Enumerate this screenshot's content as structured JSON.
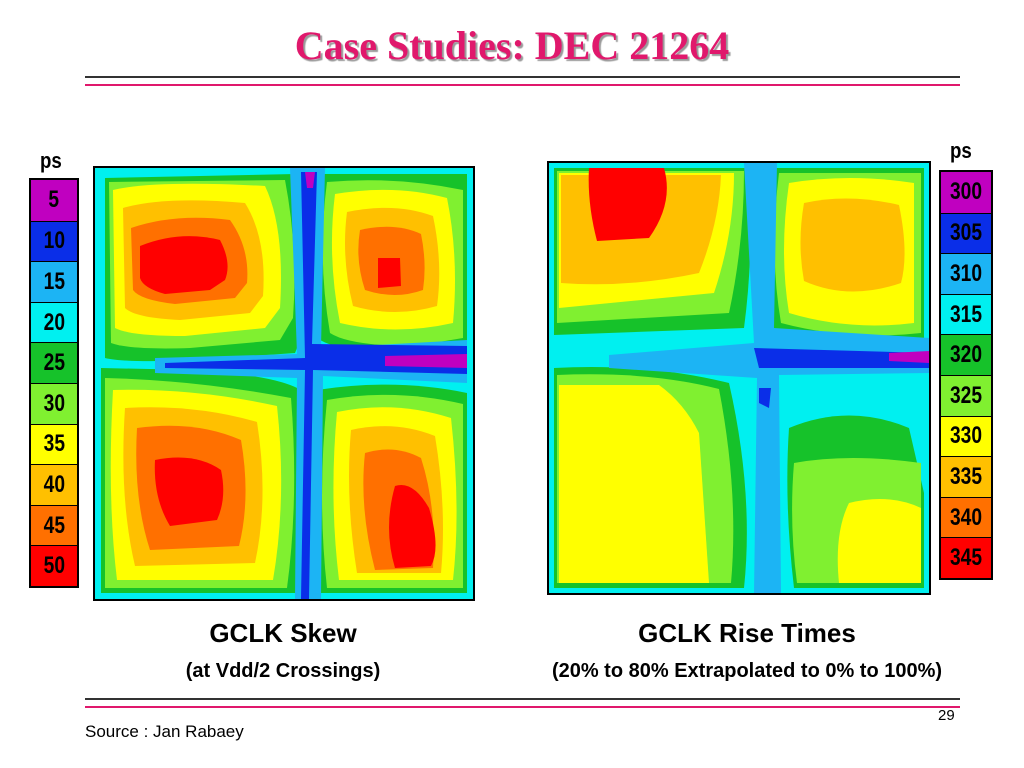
{
  "slide": {
    "title": "Case Studies: DEC 21264",
    "source": "Source : Jan Rabaey",
    "page_number": "29"
  },
  "left_panel": {
    "unit": "ps",
    "legend": [
      {
        "label": "5",
        "color": "#c000c0"
      },
      {
        "label": "10",
        "color": "#0a2ee8"
      },
      {
        "label": "15",
        "color": "#1cb4f4"
      },
      {
        "label": "20",
        "color": "#00f0f0"
      },
      {
        "label": "25",
        "color": "#16c22a"
      },
      {
        "label": "30",
        "color": "#80f030"
      },
      {
        "label": "35",
        "color": "#ffff00"
      },
      {
        "label": "40",
        "color": "#ffc000"
      },
      {
        "label": "45",
        "color": "#ff7000"
      },
      {
        "label": "50",
        "color": "#ff0000"
      }
    ],
    "caption": "GCLK Skew",
    "subcaption": "(at Vdd/2 Crossings)"
  },
  "right_panel": {
    "unit": "ps",
    "legend": [
      {
        "label": "300",
        "color": "#c000c0"
      },
      {
        "label": "305",
        "color": "#0a2ee8"
      },
      {
        "label": "310",
        "color": "#1cb4f4"
      },
      {
        "label": "315",
        "color": "#00f0f0"
      },
      {
        "label": "320",
        "color": "#16c22a"
      },
      {
        "label": "325",
        "color": "#80f030"
      },
      {
        "label": "330",
        "color": "#ffff00"
      },
      {
        "label": "335",
        "color": "#ffc000"
      },
      {
        "label": "340",
        "color": "#ff7000"
      },
      {
        "label": "345",
        "color": "#ff0000"
      }
    ],
    "caption": "GCLK Rise Times",
    "subcaption": "(20% to 80% Extrapolated to 0% to 100%)"
  },
  "colors": {
    "title": "#e0186c",
    "rule_pink": "#e0186c",
    "rule_dark": "#333333"
  }
}
